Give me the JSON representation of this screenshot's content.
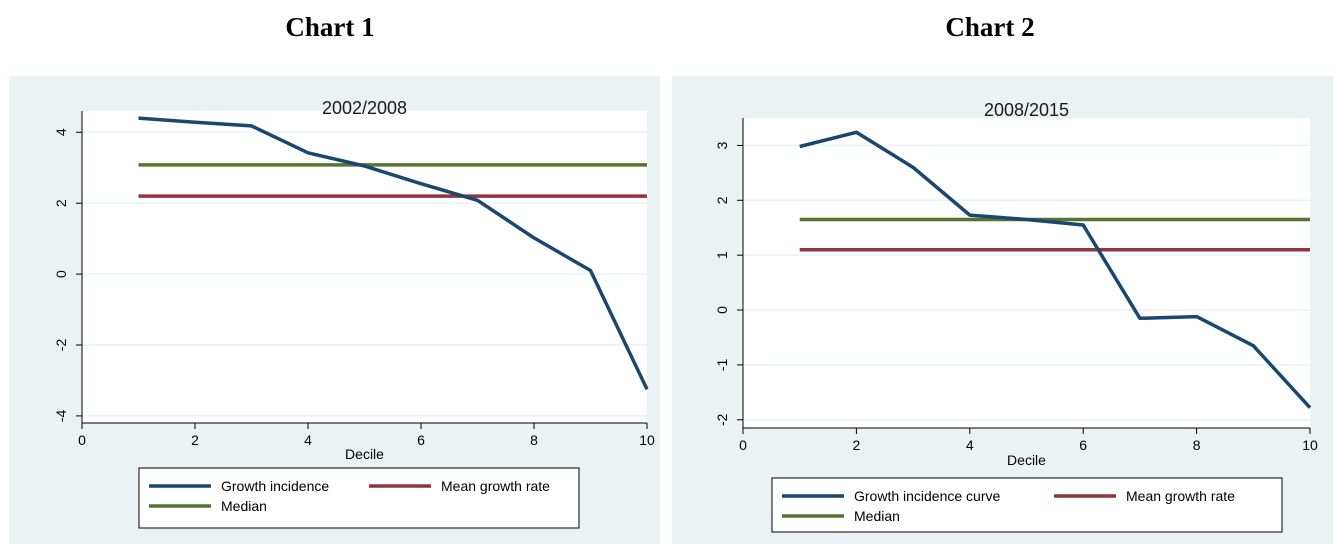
{
  "headings": [
    "Chart 1",
    "Chart 2"
  ],
  "chart_data": [
    {
      "type": "line",
      "title": "2002/2008",
      "xlabel": "Decile",
      "ylabel": "",
      "xlim": [
        0,
        10
      ],
      "ylim": [
        -4.2,
        4.6
      ],
      "xticks": [
        0,
        2,
        4,
        6,
        8,
        10
      ],
      "yticks": [
        -4,
        -2,
        0,
        2,
        4
      ],
      "grid": true,
      "legend_position": "bottom",
      "series": [
        {
          "name": "Growth incidence",
          "color": "#1a476f",
          "x": [
            1,
            2,
            3,
            4,
            5,
            6,
            7,
            8,
            9,
            10
          ],
          "y": [
            4.4,
            4.28,
            4.18,
            3.42,
            3.05,
            2.55,
            2.08,
            1.02,
            0.1,
            -3.25
          ]
        },
        {
          "name": "Mean growth rate",
          "color": "#90353b",
          "x": [
            1,
            10
          ],
          "y": [
            2.2,
            2.2
          ]
        },
        {
          "name": "Median",
          "color": "#55752f",
          "x": [
            1,
            10
          ],
          "y": [
            3.08,
            3.08
          ]
        }
      ]
    },
    {
      "type": "line",
      "title": "2008/2015",
      "xlabel": "Decile",
      "ylabel": "",
      "xlim": [
        0,
        10
      ],
      "ylim": [
        -2.15,
        3.5
      ],
      "xticks": [
        0,
        2,
        4,
        6,
        8,
        10
      ],
      "yticks": [
        -2,
        -1,
        0,
        1,
        2,
        3
      ],
      "grid": true,
      "legend_position": "bottom",
      "series": [
        {
          "name": "Growth incidence curve",
          "color": "#1a476f",
          "x": [
            1,
            2,
            3,
            4,
            5,
            6,
            7,
            8,
            9,
            10
          ],
          "y": [
            2.98,
            3.24,
            2.6,
            1.73,
            1.65,
            1.55,
            -0.15,
            -0.12,
            -0.65,
            -1.78
          ]
        },
        {
          "name": "Mean growth rate",
          "color": "#90353b",
          "x": [
            1,
            10
          ],
          "y": [
            1.1,
            1.1
          ]
        },
        {
          "name": "Median",
          "color": "#55752f",
          "x": [
            1,
            10
          ],
          "y": [
            1.65,
            1.65
          ]
        }
      ]
    }
  ]
}
